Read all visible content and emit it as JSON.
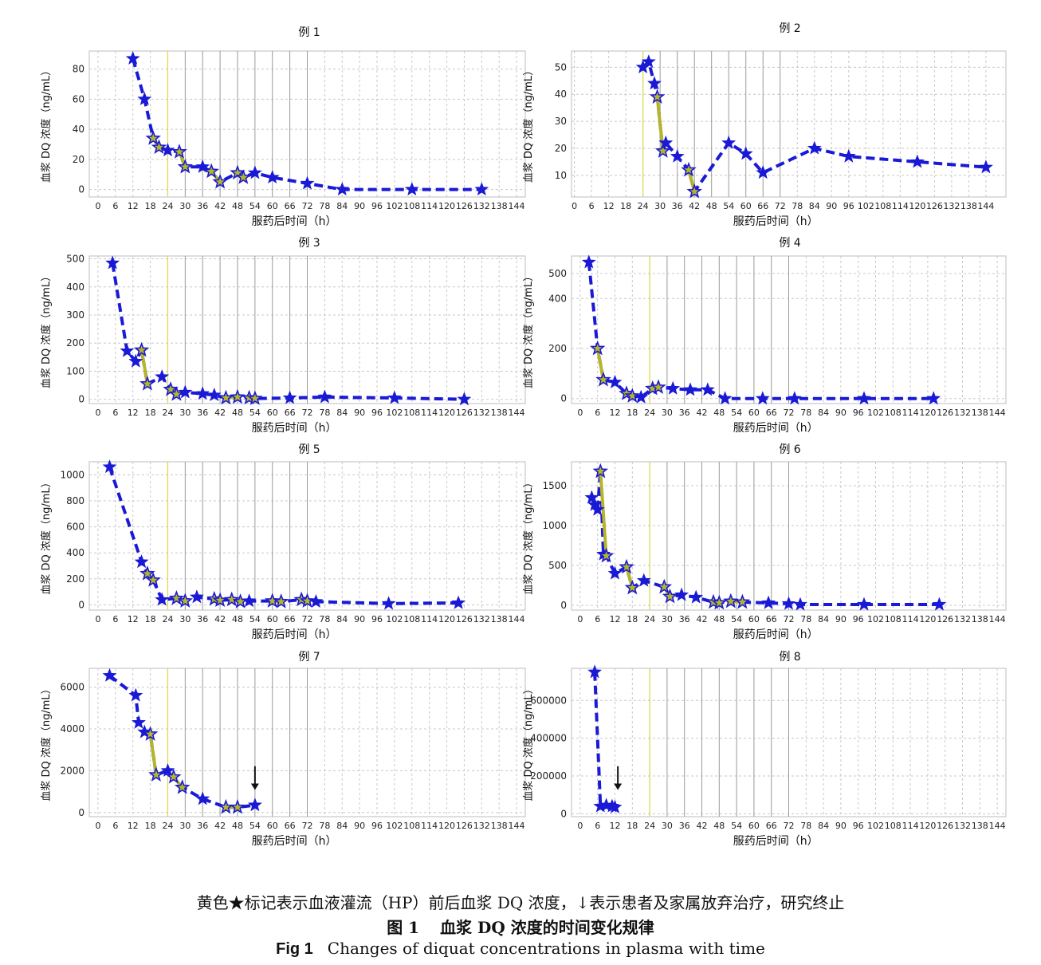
{
  "figure": {
    "note": "黄色★标记表示血液灌流（HP）前后血浆 DQ 浓度，↓表示患者及家属放弃治疗，研究终止",
    "title_cn_label": "图 1",
    "title_cn": "血浆 DQ 浓度的时间变化规律",
    "title_en_label": "Fig 1",
    "title_en": "Changes of diquat concentrations in plasma with time"
  },
  "colors": {
    "series": "#1a1ad6",
    "hp": "#b5b52a",
    "grid": "#c8c8c8",
    "vline": "#d8d84a",
    "vertical_grid": "#9a9a9a"
  },
  "chart_data": [
    {
      "type": "line",
      "title": "例 1",
      "xlabel": "服药后时间（h）",
      "ylabel": "血浆 DQ 浓度（ng/mL）",
      "xlim": [
        -3,
        147
      ],
      "ylim": [
        -5,
        92
      ],
      "yticks": [
        0,
        20,
        40,
        60,
        80
      ],
      "ytick_labels": [
        "0",
        "20",
        "40",
        "60",
        "80"
      ],
      "xticks": [
        0,
        6,
        12,
        18,
        24,
        30,
        36,
        42,
        48,
        54,
        60,
        66,
        72,
        78,
        84,
        90,
        96,
        102,
        108,
        114,
        120,
        126,
        132,
        138,
        144
      ],
      "points": [
        [
          12,
          87
        ],
        [
          16,
          60
        ],
        [
          19,
          34
        ],
        [
          21,
          28
        ],
        [
          24,
          26
        ],
        [
          28,
          25
        ],
        [
          30,
          15
        ],
        [
          36,
          15
        ],
        [
          39,
          12
        ],
        [
          42,
          5
        ],
        [
          48,
          11
        ],
        [
          50,
          8
        ],
        [
          54,
          11
        ],
        [
          60,
          8
        ],
        [
          72,
          4
        ],
        [
          84,
          0
        ],
        [
          108,
          0
        ],
        [
          132,
          0
        ]
      ],
      "hp_segments": [
        [
          [
            19,
            34
          ],
          [
            21,
            28
          ]
        ],
        [
          [
            28,
            25
          ],
          [
            30,
            15
          ]
        ],
        [
          [
            39,
            12
          ],
          [
            42,
            5
          ]
        ],
        [
          [
            48,
            11
          ],
          [
            50,
            8
          ]
        ]
      ],
      "hp_line_x": 24
    },
    {
      "type": "line",
      "title": "例 2",
      "xlabel": "服药后时间（h）",
      "ylabel": "血浆 DQ 浓度（ng/mL）",
      "xlim": [
        -1,
        151
      ],
      "ylim": [
        2,
        56
      ],
      "yticks": [
        10,
        20,
        30,
        40,
        50
      ],
      "ytick_labels": [
        "10",
        "20",
        "30",
        "40",
        "50"
      ],
      "xticks": [
        0,
        6,
        12,
        18,
        24,
        30,
        36,
        42,
        48,
        54,
        60,
        66,
        72,
        78,
        84,
        90,
        96,
        102,
        108,
        114,
        120,
        126,
        132,
        138,
        144
      ],
      "points": [
        [
          24,
          50
        ],
        [
          26,
          52
        ],
        [
          28,
          44
        ],
        [
          29,
          39
        ],
        [
          31,
          19
        ],
        [
          32,
          22
        ],
        [
          36,
          17
        ],
        [
          40,
          12
        ],
        [
          42,
          4
        ],
        [
          54,
          22
        ],
        [
          60,
          18
        ],
        [
          66,
          11
        ],
        [
          84,
          20
        ],
        [
          96,
          17
        ],
        [
          120,
          15
        ],
        [
          144,
          13
        ]
      ],
      "hp_segments": [
        [
          [
            29,
            39
          ],
          [
            31,
            19
          ]
        ],
        [
          [
            40,
            12
          ],
          [
            42,
            4
          ]
        ]
      ],
      "hp_line_x": 24
    },
    {
      "type": "line",
      "title": "例 3",
      "xlabel": "服药后时间（h）",
      "ylabel": "血浆 DQ 浓度（ng/mL）",
      "xlim": [
        -3,
        147
      ],
      "ylim": [
        -15,
        510
      ],
      "yticks": [
        0,
        100,
        200,
        300,
        400,
        500
      ],
      "ytick_labels": [
        "0",
        "100",
        "200",
        "300",
        "400",
        "500"
      ],
      "xticks": [
        0,
        6,
        12,
        18,
        24,
        30,
        36,
        42,
        48,
        54,
        60,
        66,
        72,
        78,
        84,
        90,
        96,
        102,
        108,
        114,
        120,
        126,
        132,
        138,
        144
      ],
      "points": [
        [
          5,
          485
        ],
        [
          10,
          172
        ],
        [
          13,
          135
        ],
        [
          15,
          175
        ],
        [
          17,
          55
        ],
        [
          22,
          80
        ],
        [
          25,
          35
        ],
        [
          27,
          18
        ],
        [
          30,
          25
        ],
        [
          36,
          20
        ],
        [
          40,
          15
        ],
        [
          44,
          5
        ],
        [
          48,
          8
        ],
        [
          52,
          5
        ],
        [
          54,
          3
        ],
        [
          66,
          5
        ],
        [
          78,
          8
        ],
        [
          102,
          5
        ],
        [
          126,
          0
        ]
      ],
      "hp_segments": [
        [
          [
            15,
            175
          ],
          [
            17,
            55
          ]
        ],
        [
          [
            25,
            35
          ],
          [
            27,
            18
          ]
        ],
        [
          [
            44,
            5
          ],
          [
            48,
            8
          ]
        ],
        [
          [
            52,
            5
          ],
          [
            54,
            3
          ]
        ]
      ],
      "hp_line_x": 24
    },
    {
      "type": "line",
      "title": "例 4",
      "xlabel": "服药后时间（h）",
      "ylabel": "血浆 DQ 浓度（ng/mL）",
      "xlim": [
        -3,
        147
      ],
      "ylim": [
        -20,
        570
      ],
      "yticks": [
        0,
        200,
        400,
        500
      ],
      "ytick_labels": [
        "0",
        "200",
        "400",
        "500"
      ],
      "xticks": [
        0,
        6,
        12,
        18,
        24,
        30,
        36,
        42,
        48,
        54,
        60,
        66,
        72,
        78,
        84,
        90,
        96,
        102,
        108,
        114,
        120,
        126,
        132,
        138,
        144
      ],
      "points": [
        [
          3,
          545
        ],
        [
          6,
          200
        ],
        [
          8,
          75
        ],
        [
          12,
          65
        ],
        [
          16,
          20
        ],
        [
          18,
          10
        ],
        [
          21,
          5
        ],
        [
          25,
          40
        ],
        [
          27,
          45
        ],
        [
          32,
          40
        ],
        [
          38,
          35
        ],
        [
          44,
          35
        ],
        [
          50,
          0
        ],
        [
          63,
          0
        ],
        [
          74,
          0
        ],
        [
          98,
          0
        ],
        [
          122,
          0
        ]
      ],
      "hp_segments": [
        [
          [
            6,
            200
          ],
          [
            8,
            75
          ]
        ],
        [
          [
            16,
            20
          ],
          [
            18,
            10
          ]
        ],
        [
          [
            25,
            40
          ],
          [
            27,
            45
          ]
        ]
      ],
      "hp_line_x": 24
    },
    {
      "type": "line",
      "title": "例 5",
      "xlabel": "服药后时间（h）",
      "ylabel": "血浆 DQ 浓度（ng/mL）",
      "xlim": [
        -3,
        147
      ],
      "ylim": [
        -40,
        1100
      ],
      "yticks": [
        0,
        200,
        400,
        600,
        800,
        1000
      ],
      "ytick_labels": [
        "0",
        "200",
        "400",
        "600",
        "800",
        "1000"
      ],
      "xticks": [
        0,
        6,
        12,
        18,
        24,
        30,
        36,
        42,
        48,
        54,
        60,
        66,
        72,
        78,
        84,
        90,
        96,
        102,
        108,
        114,
        120,
        126,
        132,
        138,
        144
      ],
      "points": [
        [
          4,
          1060
        ],
        [
          15,
          330
        ],
        [
          17,
          240
        ],
        [
          19,
          190
        ],
        [
          22,
          40
        ],
        [
          27,
          50
        ],
        [
          30,
          30
        ],
        [
          34,
          60
        ],
        [
          40,
          45
        ],
        [
          42,
          35
        ],
        [
          46,
          40
        ],
        [
          49,
          25
        ],
        [
          52,
          30
        ],
        [
          60,
          30
        ],
        [
          63,
          25
        ],
        [
          70,
          40
        ],
        [
          72,
          30
        ],
        [
          75,
          25
        ],
        [
          100,
          10
        ],
        [
          124,
          15
        ]
      ],
      "hp_segments": [
        [
          [
            17,
            240
          ],
          [
            19,
            190
          ]
        ],
        [
          [
            27,
            50
          ],
          [
            30,
            30
          ]
        ],
        [
          [
            40,
            45
          ],
          [
            42,
            35
          ]
        ],
        [
          [
            46,
            40
          ],
          [
            49,
            25
          ]
        ],
        [
          [
            60,
            30
          ],
          [
            63,
            25
          ]
        ],
        [
          [
            70,
            40
          ],
          [
            72,
            30
          ]
        ]
      ],
      "hp_line_x": 24
    },
    {
      "type": "line",
      "title": "例 6",
      "xlabel": "服药后时间（h）",
      "ylabel": "血浆 DQ 浓度（ng/mL）",
      "xlim": [
        -3,
        147
      ],
      "ylim": [
        -60,
        1800
      ],
      "yticks": [
        0,
        500,
        1000,
        1500
      ],
      "ytick_labels": [
        "0",
        "500",
        "1000",
        "1500"
      ],
      "xticks": [
        0,
        6,
        12,
        18,
        24,
        30,
        36,
        42,
        48,
        54,
        60,
        66,
        72,
        78,
        84,
        90,
        96,
        102,
        108,
        114,
        120,
        126,
        132,
        138,
        144
      ],
      "points": [
        [
          4,
          1350
        ],
        [
          5,
          1260
        ],
        [
          6,
          1200
        ],
        [
          7,
          1680
        ],
        [
          8,
          640
        ],
        [
          9,
          620
        ],
        [
          12,
          400
        ],
        [
          16,
          480
        ],
        [
          18,
          220
        ],
        [
          22,
          310
        ],
        [
          29,
          230
        ],
        [
          31,
          110
        ],
        [
          35,
          130
        ],
        [
          40,
          100
        ],
        [
          46,
          40
        ],
        [
          48,
          30
        ],
        [
          52,
          50
        ],
        [
          56,
          40
        ],
        [
          65,
          30
        ],
        [
          72,
          20
        ],
        [
          76,
          10
        ],
        [
          98,
          10
        ],
        [
          124,
          10
        ]
      ],
      "hp_segments": [
        [
          [
            7,
            1680
          ],
          [
            9,
            620
          ]
        ],
        [
          [
            16,
            480
          ],
          [
            18,
            220
          ]
        ],
        [
          [
            29,
            230
          ],
          [
            31,
            110
          ]
        ],
        [
          [
            46,
            40
          ],
          [
            48,
            30
          ]
        ],
        [
          [
            52,
            50
          ],
          [
            56,
            40
          ]
        ]
      ],
      "hp_line_x": 24
    },
    {
      "type": "line",
      "title": "例 7",
      "xlabel": "服药后时间（h）",
      "ylabel": "血浆 DQ 浓度（ng/mL）",
      "xlim": [
        -3,
        147
      ],
      "ylim": [
        -200,
        6900
      ],
      "yticks": [
        0,
        2000,
        4000,
        6000
      ],
      "ytick_labels": [
        "0",
        "2000",
        "4000",
        "6000"
      ],
      "xticks": [
        0,
        6,
        12,
        18,
        24,
        30,
        36,
        42,
        48,
        54,
        60,
        66,
        72,
        78,
        84,
        90,
        96,
        102,
        108,
        114,
        120,
        126,
        132,
        138,
        144
      ],
      "points": [
        [
          4,
          6550
        ],
        [
          13,
          5600
        ],
        [
          14,
          4300
        ],
        [
          16,
          3850
        ],
        [
          18,
          3750
        ],
        [
          20,
          1800
        ],
        [
          24,
          2000
        ],
        [
          26,
          1700
        ],
        [
          29,
          1200
        ],
        [
          36,
          650
        ],
        [
          44,
          250
        ],
        [
          48,
          250
        ],
        [
          54,
          350
        ]
      ],
      "hp_segments": [
        [
          [
            18,
            3750
          ],
          [
            20,
            1800
          ]
        ],
        [
          [
            26,
            1700
          ],
          [
            29,
            1200
          ]
        ],
        [
          [
            44,
            250
          ],
          [
            48,
            250
          ]
        ]
      ],
      "hp_line_x": 24,
      "terminated_x": 54
    },
    {
      "type": "line",
      "title": "例 8",
      "xlabel": "服药后时间（h）",
      "ylabel": "血浆 DQ 浓度（ng/mL）",
      "xlim": [
        -3,
        147
      ],
      "ylim": [
        -15000,
        770000
      ],
      "yticks": [
        0,
        200000,
        400000,
        600000
      ],
      "ytick_labels": [
        "0",
        "200000",
        "400000",
        "600000"
      ],
      "xticks": [
        0,
        6,
        12,
        18,
        24,
        30,
        36,
        42,
        48,
        54,
        60,
        66,
        72,
        78,
        84,
        90,
        96,
        102,
        108,
        114,
        120,
        126,
        132,
        138,
        144
      ],
      "points": [
        [
          5,
          750000
        ],
        [
          7,
          40000
        ],
        [
          9,
          45000
        ],
        [
          11,
          40000
        ],
        [
          12,
          35000
        ]
      ],
      "hp_segments": [],
      "hp_line_x": 24,
      "terminated_x": 13
    }
  ]
}
